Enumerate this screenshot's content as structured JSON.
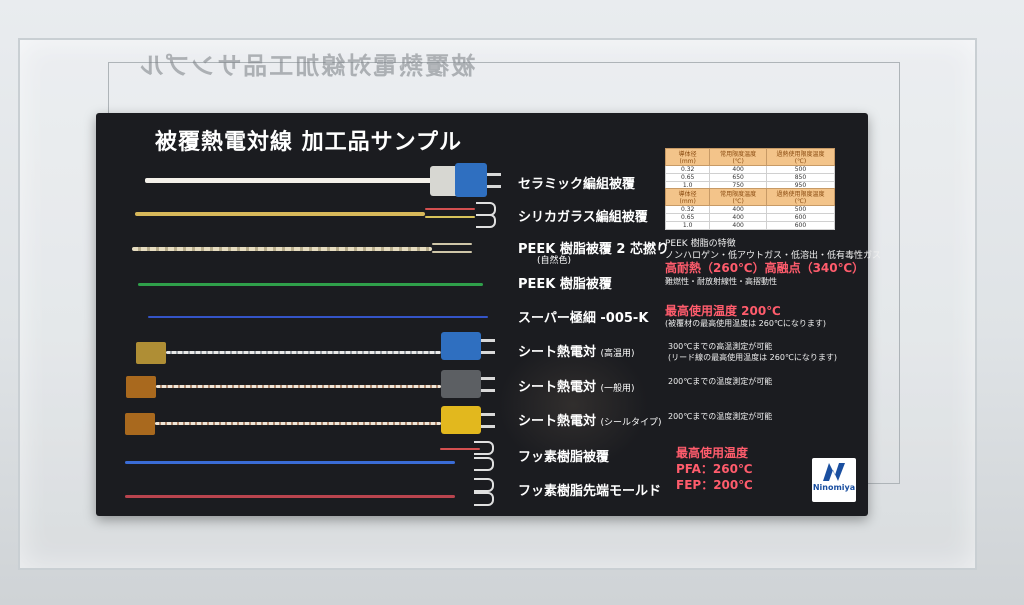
{
  "mirror_text": "被覆熱電対線加工品サンプル",
  "title": "被覆熱電対線 加工品サンプル",
  "items": [
    {
      "label": "セラミック編組被覆"
    },
    {
      "label": "シリカガラス編組被覆"
    },
    {
      "label": "PEEK 樹脂被覆 2 芯撚り",
      "sub": "(自然色)"
    },
    {
      "label": "PEEK 樹脂被覆"
    },
    {
      "label": "スーパー極細 -005-K"
    },
    {
      "label": "シート熱電対",
      "suffix": "(高温用)"
    },
    {
      "label": "シート熱電対",
      "suffix": "(一般用)"
    },
    {
      "label": "シート熱電対",
      "suffix": "(シールタイプ)"
    },
    {
      "label": "フッ素樹脂被覆"
    },
    {
      "label": "フッ素樹脂先端モールド"
    }
  ],
  "table1": {
    "headers": [
      "導体径 (mm)",
      "常用限度温度 (℃)",
      "過熱使用限度温度 (℃)"
    ],
    "rows": [
      [
        "0.32",
        "400",
        "500"
      ],
      [
        "0.65",
        "650",
        "850"
      ],
      [
        "1.0",
        "750",
        "950"
      ]
    ]
  },
  "table2": {
    "headers": [
      "導体径 (mm)",
      "常用限度温度 (℃)",
      "過熱使用限度温度 (℃)"
    ],
    "rows": [
      [
        "0.32",
        "400",
        "500"
      ],
      [
        "0.65",
        "400",
        "600"
      ],
      [
        "1.0",
        "400",
        "600"
      ]
    ]
  },
  "peek_notes": {
    "heading": "PEEK 樹脂の特徴",
    "line1": "ノンハロゲン・低アウトガス・低溶出・低有毒性ガス",
    "highlight": "高耐熱（260℃）高融点（340℃）",
    "line3": "難燃性・耐放射線性・高摺動性"
  },
  "super_notes": {
    "highlight": "最高使用温度 200℃",
    "detail": "(被覆材の最高使用温度は 260℃になります)"
  },
  "sheet_high_notes": {
    "line1": "300℃までの高温測定が可能",
    "line2": "(リード線の最高使用温度は 260℃になります)"
  },
  "sheet_general_note": "200℃までの温度測定が可能",
  "sheet_seal_note": "200℃までの温度測定が可能",
  "fluoro_notes": {
    "heading": "最高使用温度",
    "pfa": "PFA：260℃",
    "fep": "FEP：200℃"
  },
  "logo": {
    "text": "Ninomiya"
  },
  "colors": {
    "board": "#1b1c20",
    "highlight": "#ff5c6c",
    "logo_blue": "#1a4fa0"
  }
}
